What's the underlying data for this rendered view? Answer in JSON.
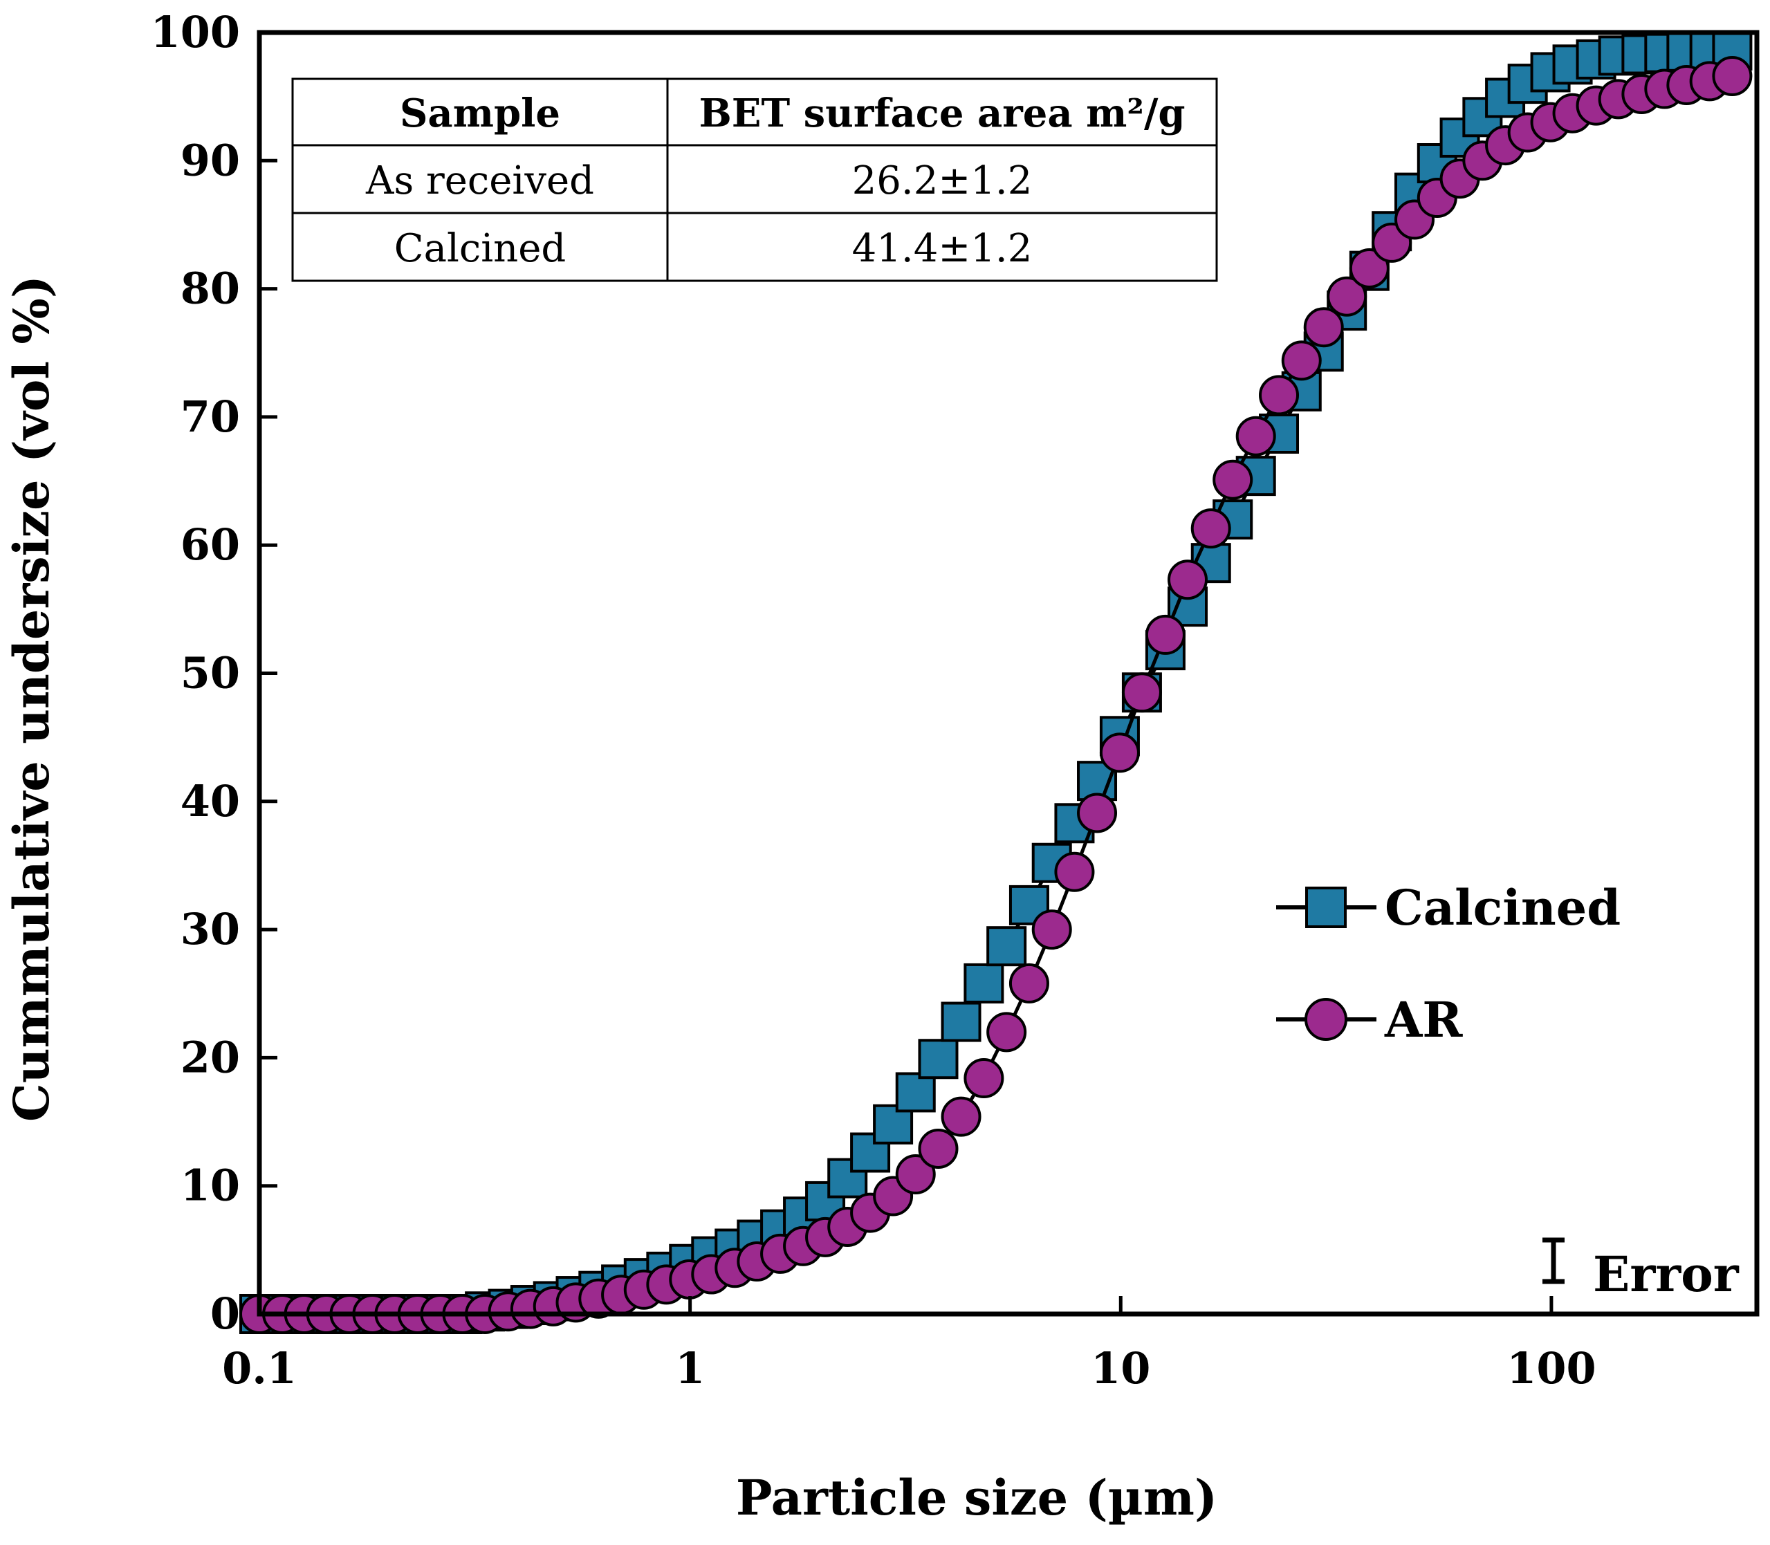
{
  "chart_data": {
    "type": "scatter",
    "title": "",
    "xlabel": "Particle size (µm)",
    "ylabel": "Cummulative undersize (vol %)",
    "xscale": "log",
    "xlim": [
      0.1,
      300
    ],
    "ylim": [
      0,
      100
    ],
    "xticks": [
      0.1,
      1,
      10,
      100
    ],
    "xtick_labels": [
      "0.1",
      "1",
      "10",
      "100"
    ],
    "yticks": [
      0,
      10,
      20,
      30,
      40,
      50,
      60,
      70,
      80,
      90,
      100
    ],
    "ytick_labels": [
      "0",
      "10",
      "20",
      "30",
      "40",
      "50",
      "60",
      "70",
      "80",
      "90",
      "100"
    ],
    "grid": false,
    "legend_position": "right",
    "x": [
      0.1,
      0.113,
      0.127,
      0.143,
      0.162,
      0.183,
      0.206,
      0.233,
      0.263,
      0.296,
      0.334,
      0.378,
      0.426,
      0.481,
      0.543,
      0.613,
      0.692,
      0.781,
      0.881,
      0.995,
      1.12,
      1.27,
      1.43,
      1.62,
      1.83,
      2.06,
      2.32,
      2.62,
      2.96,
      3.34,
      3.77,
      4.26,
      4.81,
      5.43,
      6.13,
      6.92,
      7.81,
      8.81,
      9.95,
      11.2,
      12.7,
      14.3,
      16.2,
      18.2,
      20.6,
      23.3,
      26.3,
      29.6,
      33.5,
      37.8,
      42.6,
      48.1,
      54.3,
      61.3,
      69.2,
      78.1,
      88.1,
      99.5,
      112,
      127,
      143,
      162,
      183,
      206,
      233,
      263
    ],
    "series": [
      {
        "name": "Calcined",
        "marker": "square",
        "color": "#1f7aa3",
        "values": [
          0,
          0,
          0,
          0,
          0,
          0,
          0,
          0,
          0,
          0,
          0.2,
          0.4,
          0.7,
          1.0,
          1.4,
          1.8,
          2.3,
          2.8,
          3.3,
          3.9,
          4.5,
          5.1,
          5.8,
          6.6,
          7.6,
          8.8,
          10.6,
          12.6,
          14.8,
          17.3,
          19.9,
          22.8,
          25.8,
          28.7,
          31.9,
          35.2,
          38.3,
          41.6,
          45.1,
          48.5,
          51.8,
          55.2,
          58.6,
          62.0,
          65.4,
          68.7,
          72.0,
          75.1,
          78.3,
          81.4,
          84.5,
          87.5,
          89.8,
          91.8,
          93.4,
          94.9,
          96.0,
          96.9,
          97.5,
          97.9,
          98.2,
          98.3,
          98.4,
          98.5,
          98.5,
          98.6
        ]
      },
      {
        "name": "AR",
        "marker": "circle",
        "color": "#9c2a8e",
        "values": [
          0,
          0,
          0,
          0,
          0,
          0,
          0,
          0,
          0,
          0,
          0,
          0.2,
          0.4,
          0.6,
          0.9,
          1.2,
          1.5,
          1.9,
          2.3,
          2.7,
          3.1,
          3.6,
          4.1,
          4.7,
          5.3,
          6.0,
          6.8,
          7.9,
          9.2,
          10.9,
          12.9,
          15.4,
          18.4,
          22.0,
          25.8,
          30.0,
          34.5,
          39.1,
          43.8,
          48.5,
          53.0,
          57.3,
          61.3,
          65.1,
          68.5,
          71.7,
          74.4,
          77.0,
          79.4,
          81.6,
          83.6,
          85.4,
          87.1,
          88.6,
          90.0,
          91.2,
          92.2,
          93.0,
          93.7,
          94.3,
          94.8,
          95.2,
          95.6,
          95.9,
          96.2,
          96.6
        ]
      }
    ],
    "annotation": "Error",
    "inset_table": {
      "headers": [
        "Sample",
        "BET surface area m²/g"
      ],
      "rows": [
        [
          "As received",
          "26.2±1.2"
        ],
        [
          "Calcined",
          "41.4±1.2"
        ]
      ]
    }
  }
}
